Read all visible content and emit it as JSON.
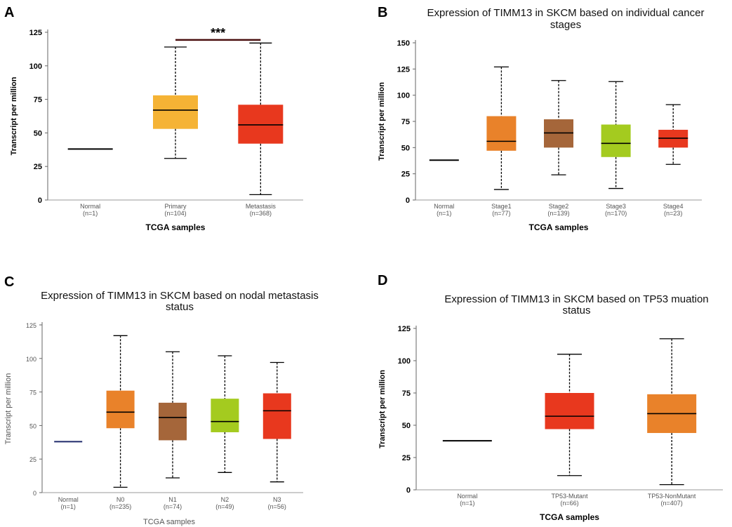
{
  "chart_data": [
    {
      "panel_label": "A",
      "type": "box",
      "title": "",
      "xlabel": "TCGA samples",
      "ylabel": "Transcript per million",
      "ylim": [
        0,
        125
      ],
      "yticks": [
        0,
        25,
        50,
        75,
        100,
        125
      ],
      "groups": [
        {
          "name": "Normal",
          "n": "(n=1)",
          "color": "#000000",
          "min": 38,
          "q1": 38,
          "median": 38,
          "q3": 38,
          "max": 38
        },
        {
          "name": "Primary",
          "n": "(n=104)",
          "color": "#F5B335",
          "min": 31,
          "q1": 53,
          "median": 67,
          "q3": 78,
          "max": 114
        },
        {
          "name": "Metastasis",
          "n": "(n=368)",
          "color": "#E8381E",
          "min": 4,
          "q1": 42,
          "median": 56,
          "q3": 71,
          "max": 117
        }
      ],
      "significance": {
        "text": "***",
        "from": "Primary",
        "to": "Metastasis",
        "level": 123
      }
    },
    {
      "panel_label": "B",
      "type": "box",
      "title": "Expression of TIMM13 in SKCM based on individual cancer stages",
      "title_lines": [
        "Expression of TIMM13 in SKCM based on individual cancer",
        "stages"
      ],
      "xlabel": "TCGA samples",
      "ylabel": "Transcript per million",
      "ylim": [
        0,
        150
      ],
      "yticks": [
        0,
        25,
        50,
        75,
        100,
        125,
        150
      ],
      "groups": [
        {
          "name": "Normal",
          "n": "(n=1)",
          "color": "#000000",
          "min": 38,
          "q1": 38,
          "median": 38,
          "q3": 38,
          "max": 38
        },
        {
          "name": "Stage1",
          "n": "(n=77)",
          "color": "#E9822A",
          "min": 10,
          "q1": 47,
          "median": 56,
          "q3": 80,
          "max": 127
        },
        {
          "name": "Stage2",
          "n": "(n=139)",
          "color": "#A5663A",
          "min": 24,
          "q1": 50,
          "median": 64,
          "q3": 77,
          "max": 114
        },
        {
          "name": "Stage3",
          "n": "(n=170)",
          "color": "#A4CB1F",
          "min": 11,
          "q1": 41,
          "median": 54,
          "q3": 72,
          "max": 113
        },
        {
          "name": "Stage4",
          "n": "(n=23)",
          "color": "#E8381E",
          "min": 34,
          "q1": 50,
          "median": 59,
          "q3": 67,
          "max": 91
        }
      ]
    },
    {
      "panel_label": "C",
      "type": "box",
      "title": "Expression of TIMM13 in SKCM based on nodal metastasis status",
      "title_lines": [
        "Expression of TIMM13 in SKCM based on nodal metastasis",
        "status"
      ],
      "xlabel": "TCGA samples",
      "ylabel": "Transcript per million",
      "ylim": [
        0,
        125
      ],
      "yticks": [
        0,
        25,
        50,
        75,
        100,
        125
      ],
      "groups": [
        {
          "name": "Normal",
          "n": "(n=1)",
          "color": "#1F2A6B",
          "min": 38,
          "q1": 38,
          "median": 38,
          "q3": 38,
          "max": 38
        },
        {
          "name": "N0",
          "n": "(n=235)",
          "color": "#E9822A",
          "min": 4,
          "q1": 48,
          "median": 60,
          "q3": 76,
          "max": 117
        },
        {
          "name": "N1",
          "n": "(n=74)",
          "color": "#A5663A",
          "min": 11,
          "q1": 39,
          "median": 56,
          "q3": 67,
          "max": 105
        },
        {
          "name": "N2",
          "n": "(n=49)",
          "color": "#A4CB1F",
          "min": 15,
          "q1": 45,
          "median": 53,
          "q3": 70,
          "max": 102
        },
        {
          "name": "N3",
          "n": "(n=56)",
          "color": "#E8381E",
          "min": 8,
          "q1": 40,
          "median": 61,
          "q3": 74,
          "max": 97
        }
      ]
    },
    {
      "panel_label": "D",
      "type": "box",
      "title": "Expression of TIMM13 in SKCM based on TP53 muation status",
      "title_lines": [
        "Expression of TIMM13 in SKCM based on TP53 muation",
        "status"
      ],
      "xlabel": "TCGA samples",
      "ylabel": "Transcript per million",
      "ylim": [
        0,
        125
      ],
      "yticks": [
        0,
        25,
        50,
        75,
        100,
        125
      ],
      "groups": [
        {
          "name": "Normal",
          "n": "(n=1)",
          "color": "#000000",
          "min": 38,
          "q1": 38,
          "median": 38,
          "q3": 38,
          "max": 38
        },
        {
          "name": "TP53-Mutant",
          "n": "(n=66)",
          "color": "#E8381E",
          "min": 11,
          "q1": 47,
          "median": 57,
          "q3": 75,
          "max": 105
        },
        {
          "name": "TP53-NonMutant",
          "n": "(n=407)",
          "color": "#E9822A",
          "min": 4,
          "q1": 44,
          "median": 59,
          "q3": 74,
          "max": 117
        }
      ]
    }
  ]
}
